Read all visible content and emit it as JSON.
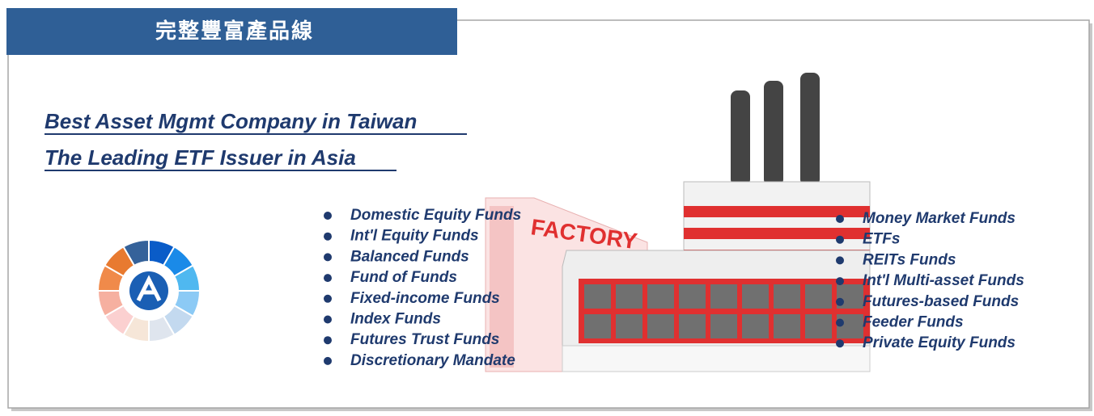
{
  "header": {
    "title": "完整豐富產品線"
  },
  "headlines": [
    "Best Asset Mgmt Company in Taiwan",
    "The Leading ETF Issuer in Asia"
  ],
  "factory": {
    "sign": "FACTORY"
  },
  "left_list": [
    "Domestic Equity Funds",
    "Int'l Equity Funds",
    "Balanced Funds",
    "Fund of Funds",
    "Fixed-income Funds",
    "Index Funds",
    "Futures Trust Funds",
    "Discretionary Mandate"
  ],
  "right_list": [
    "Money Market Funds",
    "ETFs",
    "REITs Funds",
    "Int'l Multi-asset Funds",
    "Futures-based Funds",
    "Feeder Funds",
    "Private Equity Funds"
  ]
}
